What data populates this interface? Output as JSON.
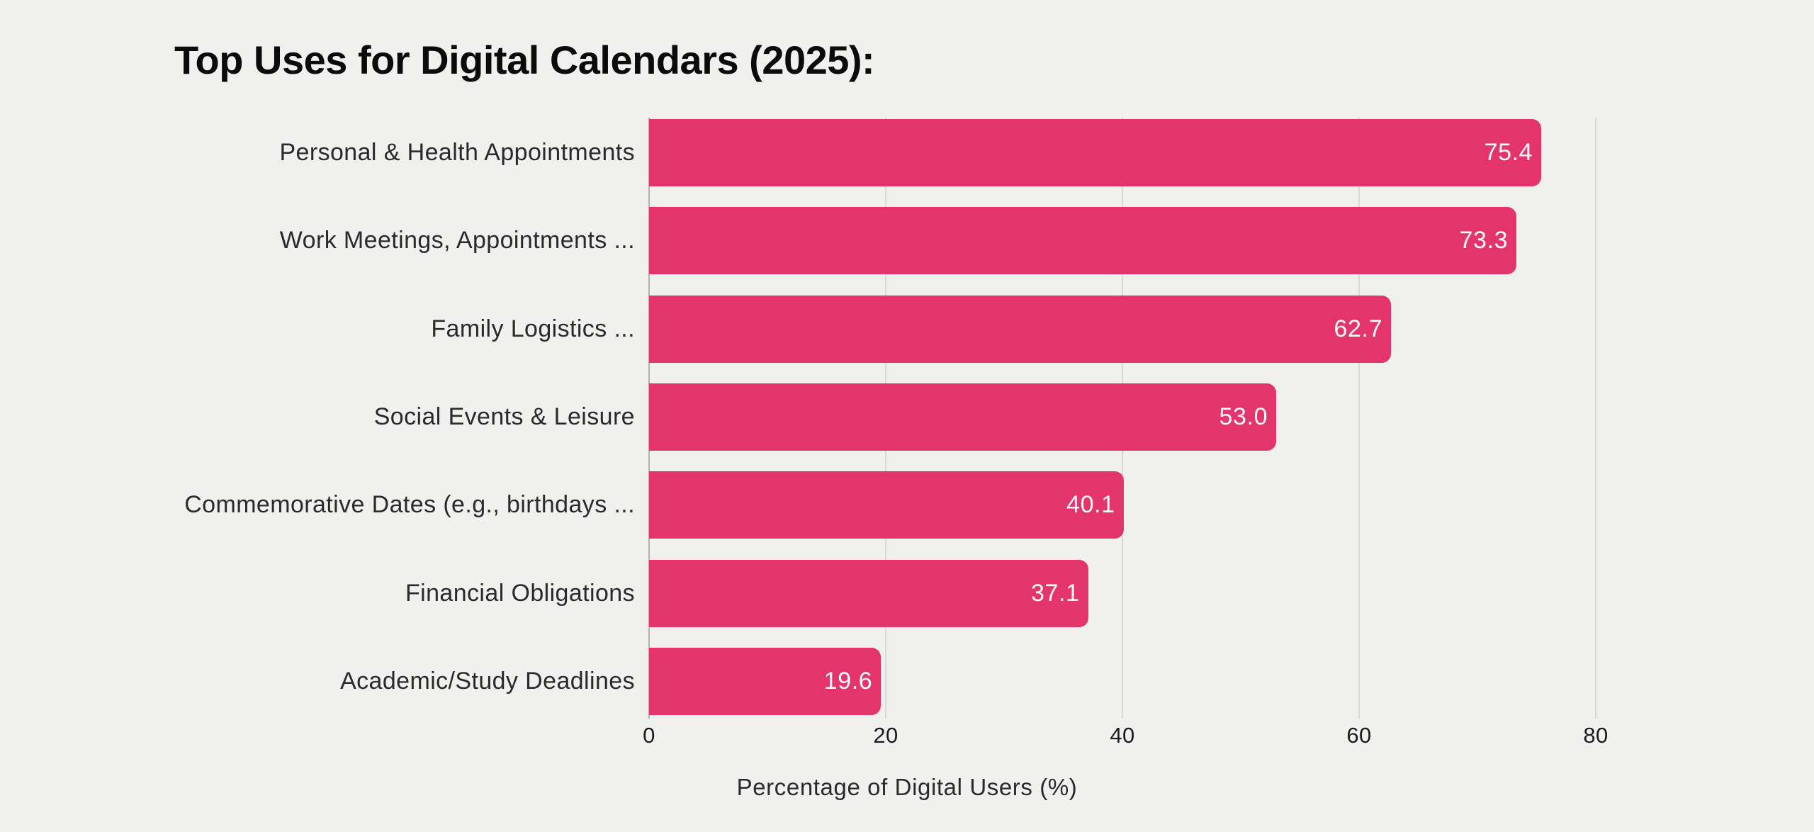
{
  "page": {
    "background_color": "#f0f0ee"
  },
  "chart_data": {
    "type": "bar",
    "orientation": "horizontal",
    "title": "Top Uses for Digital Calendars (2025):",
    "categories": [
      "Personal & Health Appointments",
      "Work Meetings, Appointments ...",
      "Family Logistics ...",
      "Social Events & Leisure",
      "Commemorative Dates (e.g., birthdays ...",
      "Financial Obligations",
      "Academic/Study Deadlines"
    ],
    "values": [
      75.4,
      73.3,
      62.7,
      53.0,
      40.1,
      37.1,
      19.6
    ],
    "value_labels": [
      "75.4",
      "73.3",
      "62.7",
      "53.0",
      "40.1",
      "37.1",
      "19.6"
    ],
    "xlabel": "Percentage of Digital Users (%)",
    "xticks": [
      0,
      20,
      40,
      60,
      80
    ],
    "xtick_labels": [
      "0",
      "20",
      "40",
      "60",
      "80"
    ],
    "xlim": [
      0,
      80
    ],
    "grid": "vertical-gridlines",
    "legend": "none",
    "bar_color": "#e3346c",
    "value_label_color": "#ffffff",
    "gridline_color": "#d9d8d6",
    "zero_line_color": "#b2b1af"
  }
}
